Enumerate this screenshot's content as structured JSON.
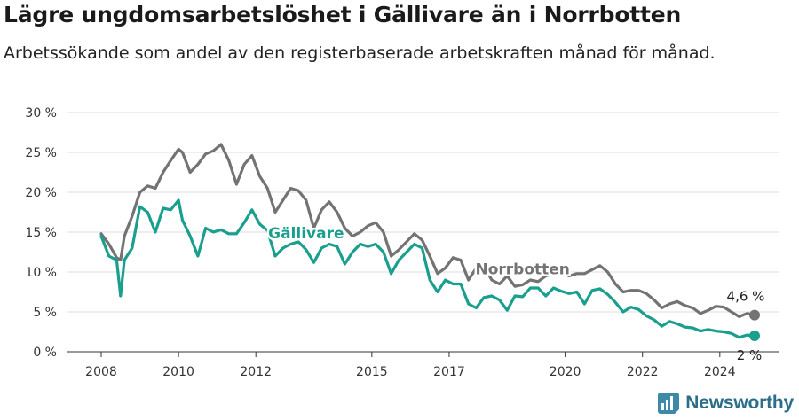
{
  "title": "Lägre ungdomsarbetslöshet i Gällivare än i Norrbotten",
  "subtitle": "Arbetssökande som andel av den registerbaserade arbetskraften månad för månad.",
  "brand": {
    "name": "Newsworthy",
    "icon": "newsworthy-logo-icon",
    "color": "#2c6e8a"
  },
  "chart_data": {
    "type": "line",
    "title": "Lägre ungdomsarbetslöshet i Gällivare än i Norrbotten",
    "xlabel": "",
    "ylabel": "",
    "xlim": [
      2008,
      2025.5
    ],
    "ylim": [
      0,
      30
    ],
    "grid": true,
    "y_ticks": [
      0,
      5,
      10,
      15,
      20,
      25,
      30
    ],
    "y_tick_labels": [
      "0 %",
      "5 %",
      "10 %",
      "15 %",
      "20 %",
      "25 %",
      "30 %"
    ],
    "x_ticks": [
      2008,
      2010,
      2012,
      2015,
      2017,
      2020,
      2022,
      2024
    ],
    "x_tick_labels": [
      "2008",
      "2010",
      "2012",
      "2015",
      "2017",
      "2020",
      "2022",
      "2024"
    ],
    "series": [
      {
        "name": "Norrbotten",
        "color": "#737373",
        "end_label": "4,6 %",
        "x": [
          2008.0,
          2008.2,
          2008.4,
          2008.5,
          2008.6,
          2008.8,
          2009.0,
          2009.2,
          2009.4,
          2009.6,
          2009.8,
          2010.0,
          2010.1,
          2010.3,
          2010.5,
          2010.7,
          2010.9,
          2011.1,
          2011.3,
          2011.5,
          2011.7,
          2011.9,
          2012.1,
          2012.3,
          2012.5,
          2012.7,
          2012.9,
          2013.1,
          2013.3,
          2013.5,
          2013.7,
          2013.9,
          2014.1,
          2014.3,
          2014.5,
          2014.7,
          2014.9,
          2015.1,
          2015.3,
          2015.5,
          2015.7,
          2015.9,
          2016.1,
          2016.3,
          2016.5,
          2016.7,
          2016.9,
          2017.1,
          2017.3,
          2017.5,
          2017.7,
          2017.9,
          2018.1,
          2018.3,
          2018.5,
          2018.7,
          2018.9,
          2019.1,
          2019.3,
          2019.5,
          2019.7,
          2019.9,
          2020.1,
          2020.3,
          2020.5,
          2020.7,
          2020.9,
          2021.1,
          2021.3,
          2021.5,
          2021.7,
          2021.9,
          2022.1,
          2022.3,
          2022.5,
          2022.7,
          2022.9,
          2023.1,
          2023.3,
          2023.5,
          2023.7,
          2023.9,
          2024.1,
          2024.3,
          2024.5,
          2024.7,
          2024.9
        ],
        "values": [
          14.8,
          13.5,
          11.8,
          11.5,
          14.5,
          17.0,
          20.0,
          20.8,
          20.5,
          22.5,
          24.0,
          25.4,
          25.0,
          22.5,
          23.5,
          24.8,
          25.2,
          26.0,
          24.0,
          21.0,
          23.5,
          24.6,
          22.0,
          20.5,
          17.5,
          19.0,
          20.5,
          20.2,
          19.0,
          15.5,
          17.8,
          18.8,
          17.5,
          15.5,
          14.5,
          15.0,
          15.8,
          16.2,
          15.0,
          12.0,
          12.8,
          13.8,
          14.8,
          14.0,
          12.0,
          9.8,
          10.5,
          11.8,
          11.5,
          9.0,
          10.5,
          10.8,
          9.0,
          8.5,
          9.5,
          8.2,
          8.4,
          9.0,
          8.8,
          9.5,
          9.8,
          10.0,
          9.5,
          9.8,
          9.8,
          10.3,
          10.8,
          10.0,
          8.5,
          7.5,
          7.7,
          7.7,
          7.3,
          6.5,
          5.5,
          6.0,
          6.3,
          5.8,
          5.5,
          4.8,
          5.2,
          5.7,
          5.6,
          5.0,
          4.4,
          4.8,
          4.6
        ]
      },
      {
        "name": "Gällivare",
        "color": "#1a9f8e",
        "end_label": "2 %",
        "x": [
          2008.0,
          2008.2,
          2008.4,
          2008.5,
          2008.6,
          2008.8,
          2009.0,
          2009.2,
          2009.4,
          2009.6,
          2009.8,
          2010.0,
          2010.1,
          2010.3,
          2010.5,
          2010.7,
          2010.9,
          2011.1,
          2011.3,
          2011.5,
          2011.7,
          2011.9,
          2012.1,
          2012.3,
          2012.5,
          2012.7,
          2012.9,
          2013.1,
          2013.3,
          2013.5,
          2013.7,
          2013.9,
          2014.1,
          2014.3,
          2014.5,
          2014.7,
          2014.9,
          2015.1,
          2015.3,
          2015.5,
          2015.7,
          2015.9,
          2016.1,
          2016.3,
          2016.5,
          2016.7,
          2016.9,
          2017.1,
          2017.3,
          2017.5,
          2017.7,
          2017.9,
          2018.1,
          2018.3,
          2018.5,
          2018.7,
          2018.9,
          2019.1,
          2019.3,
          2019.5,
          2019.7,
          2019.9,
          2020.1,
          2020.3,
          2020.5,
          2020.7,
          2020.9,
          2021.1,
          2021.3,
          2021.5,
          2021.7,
          2021.9,
          2022.1,
          2022.3,
          2022.5,
          2022.7,
          2022.9,
          2023.1,
          2023.3,
          2023.5,
          2023.7,
          2023.9,
          2024.1,
          2024.3,
          2024.5,
          2024.7,
          2024.9
        ],
        "values": [
          14.5,
          12.0,
          11.5,
          7.0,
          11.5,
          13.0,
          18.2,
          17.5,
          15.0,
          18.0,
          17.8,
          19.0,
          16.5,
          14.5,
          12.0,
          15.5,
          15.0,
          15.3,
          14.8,
          14.8,
          16.2,
          17.8,
          16.0,
          15.2,
          12.0,
          13.0,
          13.5,
          13.8,
          12.8,
          11.2,
          13.0,
          13.5,
          13.2,
          11.0,
          12.5,
          13.5,
          13.2,
          13.5,
          12.5,
          9.8,
          11.5,
          12.5,
          13.5,
          13.0,
          9.0,
          7.5,
          9.0,
          8.5,
          8.5,
          6.0,
          5.5,
          6.8,
          7.0,
          6.5,
          5.2,
          7.0,
          6.9,
          8.0,
          8.0,
          7.0,
          8.0,
          7.6,
          7.3,
          7.5,
          6.0,
          7.7,
          7.9,
          7.2,
          6.2,
          5.0,
          5.6,
          5.3,
          4.5,
          4.0,
          3.2,
          3.8,
          3.5,
          3.1,
          3.0,
          2.6,
          2.8,
          2.6,
          2.5,
          2.3,
          1.8,
          2.1,
          2.0
        ]
      }
    ],
    "annotations": [
      {
        "text": "Gällivare",
        "x": 2013.3,
        "y": 14.2,
        "series": "Gällivare"
      },
      {
        "text": "Norrbotten",
        "x": 2018.9,
        "y": 9.7,
        "series": "Norrbotten"
      }
    ]
  }
}
